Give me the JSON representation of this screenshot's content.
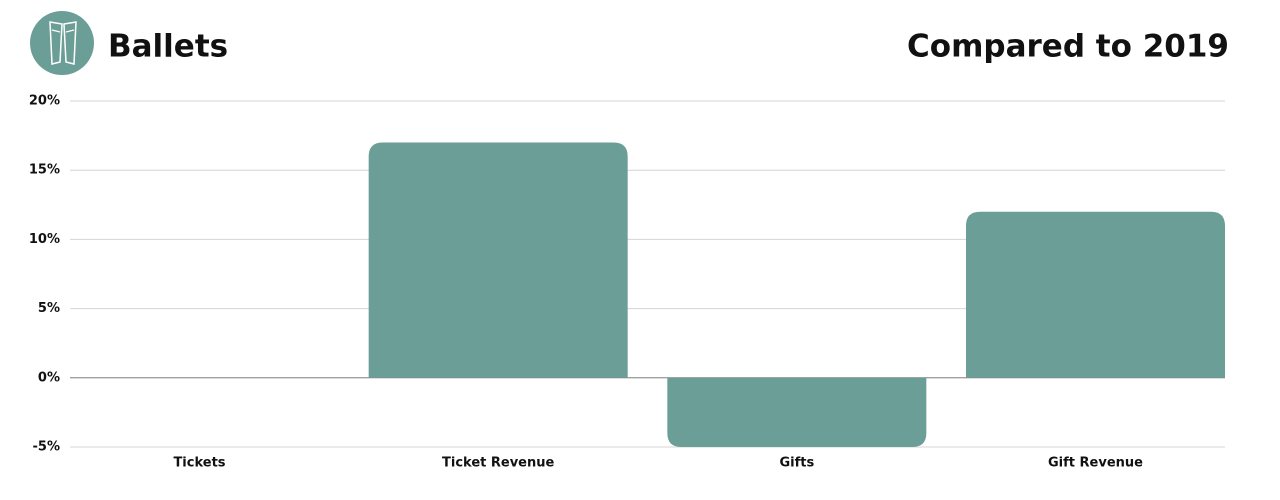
{
  "chart_data": {
    "type": "bar",
    "title": "Ballets",
    "subtitle": "Compared to 2019",
    "categories": [
      "Tickets",
      "Ticket Revenue",
      "Gifts",
      "Gift Revenue"
    ],
    "values": [
      0,
      17,
      -5,
      12
    ],
    "color": "#6b9e96",
    "ylim": [
      -5,
      20
    ],
    "yticks": [
      {
        "value": -5,
        "label": "-5%"
      },
      {
        "value": 0,
        "label": "0%"
      },
      {
        "value": 5,
        "label": "5%"
      },
      {
        "value": 10,
        "label": "10%"
      },
      {
        "value": 15,
        "label": "15%"
      },
      {
        "value": 20,
        "label": "20%"
      }
    ],
    "grid": true
  }
}
